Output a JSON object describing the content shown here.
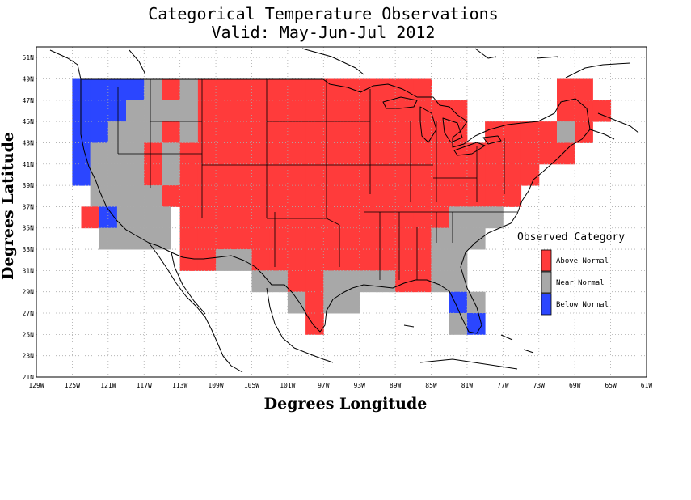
{
  "title": "Categorical Temperature Observations",
  "subtitle": "Valid: May-Jun-Jul 2012",
  "xlabel": "Degrees Longitude",
  "ylabel": "Degrees Latitude",
  "colors": {
    "above": "#ff3b3b",
    "near": "#a8a8a8",
    "below": "#2b46ff",
    "grid": "#aaaaaa"
  },
  "x_ticks": [
    "129W",
    "125W",
    "121W",
    "117W",
    "113W",
    "109W",
    "105W",
    "101W",
    "97W",
    "93W",
    "89W",
    "85W",
    "81W",
    "77W",
    "73W",
    "69W",
    "65W",
    "61W"
  ],
  "y_ticks": [
    "21N",
    "23N",
    "25N",
    "27N",
    "29N",
    "31N",
    "33N",
    "35N",
    "37N",
    "39N",
    "41N",
    "43N",
    "45N",
    "47N",
    "49N",
    "51N"
  ],
  "legend": {
    "title": "Observed Category",
    "items": [
      {
        "key": "above",
        "label": "Above Normal"
      },
      {
        "key": "near",
        "label": "Near Normal"
      },
      {
        "key": "below",
        "label": "Below Normal"
      }
    ]
  },
  "grid_cells": {
    "cell_size_deg": 2,
    "note_units": "lon/lat of lower-left corner in degrees",
    "cells": [
      {
        "lon": -125,
        "lat": 47,
        "cat": "below"
      },
      {
        "lon": -123,
        "lat": 47,
        "cat": "below"
      },
      {
        "lon": -121,
        "lat": 47,
        "cat": "below"
      },
      {
        "lon": -119,
        "lat": 47,
        "cat": "below"
      },
      {
        "lon": -117,
        "lat": 47,
        "cat": "near"
      },
      {
        "lon": -115,
        "lat": 47,
        "cat": "above"
      },
      {
        "lon": -113,
        "lat": 47,
        "cat": "near"
      },
      {
        "lon": -111,
        "lat": 47,
        "cat": "above"
      },
      {
        "lon": -109,
        "lat": 47,
        "cat": "above"
      },
      {
        "lon": -107,
        "lat": 47,
        "cat": "above"
      },
      {
        "lon": -105,
        "lat": 47,
        "cat": "above"
      },
      {
        "lon": -103,
        "lat": 47,
        "cat": "above"
      },
      {
        "lon": -101,
        "lat": 47,
        "cat": "above"
      },
      {
        "lon": -99,
        "lat": 47,
        "cat": "above"
      },
      {
        "lon": -97,
        "lat": 47,
        "cat": "above"
      },
      {
        "lon": -95,
        "lat": 47,
        "cat": "above"
      },
      {
        "lon": -93,
        "lat": 47,
        "cat": "above"
      },
      {
        "lon": -91,
        "lat": 47,
        "cat": "above"
      },
      {
        "lon": -89,
        "lat": 47,
        "cat": "above"
      },
      {
        "lon": -87,
        "lat": 47,
        "cat": "above"
      },
      {
        "lon": -125,
        "lat": 45,
        "cat": "below"
      },
      {
        "lon": -123,
        "lat": 45,
        "cat": "below"
      },
      {
        "lon": -121,
        "lat": 45,
        "cat": "below"
      },
      {
        "lon": -119,
        "lat": 45,
        "cat": "near"
      },
      {
        "lon": -117,
        "lat": 45,
        "cat": "near"
      },
      {
        "lon": -115,
        "lat": 45,
        "cat": "near"
      },
      {
        "lon": -113,
        "lat": 45,
        "cat": "near"
      },
      {
        "lon": -111,
        "lat": 45,
        "cat": "above"
      },
      {
        "lon": -109,
        "lat": 45,
        "cat": "above"
      },
      {
        "lon": -107,
        "lat": 45,
        "cat": "above"
      },
      {
        "lon": -105,
        "lat": 45,
        "cat": "above"
      },
      {
        "lon": -103,
        "lat": 45,
        "cat": "above"
      },
      {
        "lon": -101,
        "lat": 45,
        "cat": "above"
      },
      {
        "lon": -99,
        "lat": 45,
        "cat": "above"
      },
      {
        "lon": -97,
        "lat": 45,
        "cat": "above"
      },
      {
        "lon": -95,
        "lat": 45,
        "cat": "above"
      },
      {
        "lon": -93,
        "lat": 45,
        "cat": "above"
      },
      {
        "lon": -91,
        "lat": 45,
        "cat": "above"
      },
      {
        "lon": -89,
        "lat": 45,
        "cat": "above"
      },
      {
        "lon": -87,
        "lat": 45,
        "cat": "above"
      },
      {
        "lon": -85,
        "lat": 45,
        "cat": "above"
      },
      {
        "lon": -83,
        "lat": 45,
        "cat": "above"
      },
      {
        "lon": -71,
        "lat": 45,
        "cat": "above"
      },
      {
        "lon": -69,
        "lat": 45,
        "cat": "above"
      },
      {
        "lon": -67,
        "lat": 45,
        "cat": "above"
      },
      {
        "lon": -71,
        "lat": 47,
        "cat": "above"
      },
      {
        "lon": -69,
        "lat": 47,
        "cat": "above"
      },
      {
        "lon": -125,
        "lat": 43,
        "cat": "below"
      },
      {
        "lon": -123,
        "lat": 43,
        "cat": "below"
      },
      {
        "lon": -121,
        "lat": 43,
        "cat": "near"
      },
      {
        "lon": -119,
        "lat": 43,
        "cat": "near"
      },
      {
        "lon": -117,
        "lat": 43,
        "cat": "near"
      },
      {
        "lon": -115,
        "lat": 43,
        "cat": "above"
      },
      {
        "lon": -113,
        "lat": 43,
        "cat": "near"
      },
      {
        "lon": -111,
        "lat": 43,
        "cat": "above"
      },
      {
        "lon": -109,
        "lat": 43,
        "cat": "above"
      },
      {
        "lon": -107,
        "lat": 43,
        "cat": "above"
      },
      {
        "lon": -105,
        "lat": 43,
        "cat": "above"
      },
      {
        "lon": -103,
        "lat": 43,
        "cat": "above"
      },
      {
        "lon": -101,
        "lat": 43,
        "cat": "above"
      },
      {
        "lon": -99,
        "lat": 43,
        "cat": "above"
      },
      {
        "lon": -97,
        "lat": 43,
        "cat": "above"
      },
      {
        "lon": -95,
        "lat": 43,
        "cat": "above"
      },
      {
        "lon": -93,
        "lat": 43,
        "cat": "above"
      },
      {
        "lon": -91,
        "lat": 43,
        "cat": "above"
      },
      {
        "lon": -89,
        "lat": 43,
        "cat": "above"
      },
      {
        "lon": -87,
        "lat": 43,
        "cat": "above"
      },
      {
        "lon": -85,
        "lat": 43,
        "cat": "above"
      },
      {
        "lon": -83,
        "lat": 43,
        "cat": "above"
      },
      {
        "lon": -79,
        "lat": 43,
        "cat": "above"
      },
      {
        "lon": -77,
        "lat": 43,
        "cat": "above"
      },
      {
        "lon": -75,
        "lat": 43,
        "cat": "above"
      },
      {
        "lon": -73,
        "lat": 43,
        "cat": "above"
      },
      {
        "lon": -71,
        "lat": 43,
        "cat": "near"
      },
      {
        "lon": -69,
        "lat": 43,
        "cat": "above"
      },
      {
        "lon": -125,
        "lat": 41,
        "cat": "below"
      },
      {
        "lon": -123,
        "lat": 41,
        "cat": "near"
      },
      {
        "lon": -121,
        "lat": 41,
        "cat": "near"
      },
      {
        "lon": -119,
        "lat": 41,
        "cat": "near"
      },
      {
        "lon": -117,
        "lat": 41,
        "cat": "above"
      },
      {
        "lon": -115,
        "lat": 41,
        "cat": "near"
      },
      {
        "lon": -113,
        "lat": 41,
        "cat": "above"
      },
      {
        "lon": -111,
        "lat": 41,
        "cat": "above"
      },
      {
        "lon": -109,
        "lat": 41,
        "cat": "above"
      },
      {
        "lon": -107,
        "lat": 41,
        "cat": "above"
      },
      {
        "lon": -105,
        "lat": 41,
        "cat": "above"
      },
      {
        "lon": -103,
        "lat": 41,
        "cat": "above"
      },
      {
        "lon": -101,
        "lat": 41,
        "cat": "above"
      },
      {
        "lon": -99,
        "lat": 41,
        "cat": "above"
      },
      {
        "lon": -97,
        "lat": 41,
        "cat": "above"
      },
      {
        "lon": -95,
        "lat": 41,
        "cat": "above"
      },
      {
        "lon": -93,
        "lat": 41,
        "cat": "above"
      },
      {
        "lon": -91,
        "lat": 41,
        "cat": "above"
      },
      {
        "lon": -89,
        "lat": 41,
        "cat": "above"
      },
      {
        "lon": -87,
        "lat": 41,
        "cat": "above"
      },
      {
        "lon": -85,
        "lat": 41,
        "cat": "above"
      },
      {
        "lon": -83,
        "lat": 41,
        "cat": "above"
      },
      {
        "lon": -81,
        "lat": 41,
        "cat": "above"
      },
      {
        "lon": -79,
        "lat": 41,
        "cat": "above"
      },
      {
        "lon": -77,
        "lat": 41,
        "cat": "above"
      },
      {
        "lon": -75,
        "lat": 41,
        "cat": "above"
      },
      {
        "lon": -73,
        "lat": 41,
        "cat": "above"
      },
      {
        "lon": -71,
        "lat": 41,
        "cat": "above"
      },
      {
        "lon": -125,
        "lat": 39,
        "cat": "below"
      },
      {
        "lon": -123,
        "lat": 39,
        "cat": "near"
      },
      {
        "lon": -121,
        "lat": 39,
        "cat": "near"
      },
      {
        "lon": -119,
        "lat": 39,
        "cat": "near"
      },
      {
        "lon": -117,
        "lat": 39,
        "cat": "above"
      },
      {
        "lon": -115,
        "lat": 39,
        "cat": "near"
      },
      {
        "lon": -113,
        "lat": 39,
        "cat": "above"
      },
      {
        "lon": -111,
        "lat": 39,
        "cat": "above"
      },
      {
        "lon": -109,
        "lat": 39,
        "cat": "above"
      },
      {
        "lon": -107,
        "lat": 39,
        "cat": "above"
      },
      {
        "lon": -105,
        "lat": 39,
        "cat": "above"
      },
      {
        "lon": -103,
        "lat": 39,
        "cat": "above"
      },
      {
        "lon": -101,
        "lat": 39,
        "cat": "above"
      },
      {
        "lon": -99,
        "lat": 39,
        "cat": "above"
      },
      {
        "lon": -97,
        "lat": 39,
        "cat": "above"
      },
      {
        "lon": -95,
        "lat": 39,
        "cat": "above"
      },
      {
        "lon": -93,
        "lat": 39,
        "cat": "above"
      },
      {
        "lon": -91,
        "lat": 39,
        "cat": "above"
      },
      {
        "lon": -89,
        "lat": 39,
        "cat": "above"
      },
      {
        "lon": -87,
        "lat": 39,
        "cat": "above"
      },
      {
        "lon": -85,
        "lat": 39,
        "cat": "above"
      },
      {
        "lon": -83,
        "lat": 39,
        "cat": "above"
      },
      {
        "lon": -81,
        "lat": 39,
        "cat": "above"
      },
      {
        "lon": -79,
        "lat": 39,
        "cat": "above"
      },
      {
        "lon": -77,
        "lat": 39,
        "cat": "above"
      },
      {
        "lon": -75,
        "lat": 39,
        "cat": "above"
      },
      {
        "lon": -123,
        "lat": 37,
        "cat": "near"
      },
      {
        "lon": -121,
        "lat": 37,
        "cat": "near"
      },
      {
        "lon": -119,
        "lat": 37,
        "cat": "near"
      },
      {
        "lon": -117,
        "lat": 37,
        "cat": "near"
      },
      {
        "lon": -115,
        "lat": 37,
        "cat": "above"
      },
      {
        "lon": -113,
        "lat": 37,
        "cat": "above"
      },
      {
        "lon": -111,
        "lat": 37,
        "cat": "above"
      },
      {
        "lon": -109,
        "lat": 37,
        "cat": "above"
      },
      {
        "lon": -107,
        "lat": 37,
        "cat": "above"
      },
      {
        "lon": -105,
        "lat": 37,
        "cat": "above"
      },
      {
        "lon": -103,
        "lat": 37,
        "cat": "above"
      },
      {
        "lon": -101,
        "lat": 37,
        "cat": "above"
      },
      {
        "lon": -99,
        "lat": 37,
        "cat": "above"
      },
      {
        "lon": -97,
        "lat": 37,
        "cat": "above"
      },
      {
        "lon": -95,
        "lat": 37,
        "cat": "above"
      },
      {
        "lon": -93,
        "lat": 37,
        "cat": "above"
      },
      {
        "lon": -91,
        "lat": 37,
        "cat": "above"
      },
      {
        "lon": -89,
        "lat": 37,
        "cat": "above"
      },
      {
        "lon": -87,
        "lat": 37,
        "cat": "above"
      },
      {
        "lon": -85,
        "lat": 37,
        "cat": "above"
      },
      {
        "lon": -83,
        "lat": 37,
        "cat": "above"
      },
      {
        "lon": -81,
        "lat": 37,
        "cat": "above"
      },
      {
        "lon": -79,
        "lat": 37,
        "cat": "above"
      },
      {
        "lon": -77,
        "lat": 37,
        "cat": "above"
      },
      {
        "lon": -124,
        "lat": 35,
        "cat": "above"
      },
      {
        "lon": -122,
        "lat": 35,
        "cat": "below"
      },
      {
        "lon": -120,
        "lat": 35,
        "cat": "near"
      },
      {
        "lon": -118,
        "lat": 35,
        "cat": "near"
      },
      {
        "lon": -116,
        "lat": 35,
        "cat": "near"
      },
      {
        "lon": -113,
        "lat": 35,
        "cat": "above"
      },
      {
        "lon": -111,
        "lat": 35,
        "cat": "above"
      },
      {
        "lon": -109,
        "lat": 35,
        "cat": "above"
      },
      {
        "lon": -107,
        "lat": 35,
        "cat": "above"
      },
      {
        "lon": -105,
        "lat": 35,
        "cat": "above"
      },
      {
        "lon": -103,
        "lat": 35,
        "cat": "above"
      },
      {
        "lon": -101,
        "lat": 35,
        "cat": "above"
      },
      {
        "lon": -99,
        "lat": 35,
        "cat": "above"
      },
      {
        "lon": -97,
        "lat": 35,
        "cat": "above"
      },
      {
        "lon": -95,
        "lat": 35,
        "cat": "above"
      },
      {
        "lon": -93,
        "lat": 35,
        "cat": "above"
      },
      {
        "lon": -91,
        "lat": 35,
        "cat": "above"
      },
      {
        "lon": -89,
        "lat": 35,
        "cat": "above"
      },
      {
        "lon": -87,
        "lat": 35,
        "cat": "above"
      },
      {
        "lon": -85,
        "lat": 35,
        "cat": "above"
      },
      {
        "lon": -83,
        "lat": 35,
        "cat": "near"
      },
      {
        "lon": -81,
        "lat": 35,
        "cat": "near"
      },
      {
        "lon": -79,
        "lat": 35,
        "cat": "near"
      },
      {
        "lon": -122,
        "lat": 33,
        "cat": "near"
      },
      {
        "lon": -120,
        "lat": 33,
        "cat": "near"
      },
      {
        "lon": -118,
        "lat": 33,
        "cat": "near"
      },
      {
        "lon": -116,
        "lat": 33,
        "cat": "near"
      },
      {
        "lon": -113,
        "lat": 33,
        "cat": "above"
      },
      {
        "lon": -111,
        "lat": 33,
        "cat": "above"
      },
      {
        "lon": -109,
        "lat": 33,
        "cat": "above"
      },
      {
        "lon": -107,
        "lat": 33,
        "cat": "above"
      },
      {
        "lon": -105,
        "lat": 33,
        "cat": "above"
      },
      {
        "lon": -103,
        "lat": 33,
        "cat": "above"
      },
      {
        "lon": -101,
        "lat": 33,
        "cat": "above"
      },
      {
        "lon": -99,
        "lat": 33,
        "cat": "above"
      },
      {
        "lon": -97,
        "lat": 33,
        "cat": "above"
      },
      {
        "lon": -95,
        "lat": 33,
        "cat": "above"
      },
      {
        "lon": -93,
        "lat": 33,
        "cat": "above"
      },
      {
        "lon": -91,
        "lat": 33,
        "cat": "above"
      },
      {
        "lon": -89,
        "lat": 33,
        "cat": "above"
      },
      {
        "lon": -87,
        "lat": 33,
        "cat": "above"
      },
      {
        "lon": -85,
        "lat": 33,
        "cat": "near"
      },
      {
        "lon": -83,
        "lat": 33,
        "cat": "near"
      },
      {
        "lon": -81,
        "lat": 33,
        "cat": "near"
      },
      {
        "lon": -113,
        "lat": 31,
        "cat": "above"
      },
      {
        "lon": -111,
        "lat": 31,
        "cat": "above"
      },
      {
        "lon": -109,
        "lat": 31,
        "cat": "near"
      },
      {
        "lon": -107,
        "lat": 31,
        "cat": "near"
      },
      {
        "lon": -105,
        "lat": 31,
        "cat": "above"
      },
      {
        "lon": -103,
        "lat": 31,
        "cat": "above"
      },
      {
        "lon": -101,
        "lat": 31,
        "cat": "above"
      },
      {
        "lon": -99,
        "lat": 31,
        "cat": "above"
      },
      {
        "lon": -97,
        "lat": 31,
        "cat": "above"
      },
      {
        "lon": -95,
        "lat": 31,
        "cat": "above"
      },
      {
        "lon": -93,
        "lat": 31,
        "cat": "above"
      },
      {
        "lon": -91,
        "lat": 31,
        "cat": "above"
      },
      {
        "lon": -89,
        "lat": 31,
        "cat": "above"
      },
      {
        "lon": -87,
        "lat": 31,
        "cat": "above"
      },
      {
        "lon": -85,
        "lat": 31,
        "cat": "near"
      },
      {
        "lon": -83,
        "lat": 31,
        "cat": "near"
      },
      {
        "lon": -105,
        "lat": 29,
        "cat": "near"
      },
      {
        "lon": -103,
        "lat": 29,
        "cat": "near"
      },
      {
        "lon": -101,
        "lat": 29,
        "cat": "above"
      },
      {
        "lon": -99,
        "lat": 29,
        "cat": "above"
      },
      {
        "lon": -97,
        "lat": 29,
        "cat": "near"
      },
      {
        "lon": -95,
        "lat": 29,
        "cat": "near"
      },
      {
        "lon": -93,
        "lat": 29,
        "cat": "near"
      },
      {
        "lon": -91,
        "lat": 29,
        "cat": "near"
      },
      {
        "lon": -89,
        "lat": 29,
        "cat": "above"
      },
      {
        "lon": -87,
        "lat": 29,
        "cat": "above"
      },
      {
        "lon": -85,
        "lat": 29,
        "cat": "near"
      },
      {
        "lon": -83,
        "lat": 29,
        "cat": "near"
      },
      {
        "lon": -101,
        "lat": 27,
        "cat": "near"
      },
      {
        "lon": -99,
        "lat": 27,
        "cat": "above"
      },
      {
        "lon": -97,
        "lat": 27,
        "cat": "near"
      },
      {
        "lon": -95,
        "lat": 27,
        "cat": "near"
      },
      {
        "lon": -83,
        "lat": 27,
        "cat": "below"
      },
      {
        "lon": -81,
        "lat": 27,
        "cat": "near"
      },
      {
        "lon": -99,
        "lat": 25,
        "cat": "above"
      },
      {
        "lon": -83,
        "lat": 25,
        "cat": "near"
      },
      {
        "lon": -81,
        "lat": 25,
        "cat": "below"
      }
    ]
  }
}
